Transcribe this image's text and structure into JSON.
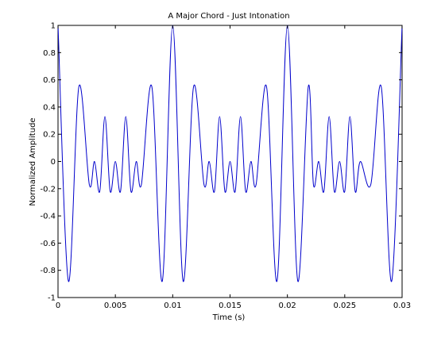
{
  "chart_data": {
    "type": "line",
    "title": "A Major Chord - Just Intonation",
    "xlabel": "Time (s)",
    "ylabel": "Normalized Amplitude",
    "xlim": [
      0,
      0.03
    ],
    "ylim": [
      -1,
      1
    ],
    "grid": false,
    "legend": "none",
    "line_color": "#0000cc",
    "frame_color": "#000000",
    "x_ticks": [
      {
        "value": 0,
        "label": "0"
      },
      {
        "value": 0.005,
        "label": "0.005"
      },
      {
        "value": 0.01,
        "label": "0.01"
      },
      {
        "value": 0.015,
        "label": "0.015"
      },
      {
        "value": 0.02,
        "label": "0.02"
      },
      {
        "value": 0.025,
        "label": "0.025"
      },
      {
        "value": 0.03,
        "label": "0.03"
      }
    ],
    "y_ticks": [
      {
        "value": 1,
        "label": "1"
      },
      {
        "value": 0.8,
        "label": "0.8"
      },
      {
        "value": 0.6,
        "label": "0.6"
      },
      {
        "value": 0.4,
        "label": "0.4"
      },
      {
        "value": 0.2,
        "label": "0.2"
      },
      {
        "value": 0,
        "label": "0"
      },
      {
        "value": -0.2,
        "label": "-0.2"
      },
      {
        "value": -0.4,
        "label": "-0.4"
      },
      {
        "value": -0.6,
        "label": "-0.6"
      },
      {
        "value": -0.8,
        "label": "-0.8"
      },
      {
        "value": -1,
        "label": "-1"
      }
    ],
    "series": [
      {
        "x": [
          0,
          0.00091,
          0.00182,
          0.00273,
          0.00318,
          0.00364,
          0.00409,
          0.00455,
          0.005,
          0.00545,
          0.00591,
          0.00636,
          0.00682,
          0.00727,
          0.00818,
          0.00909,
          0.01,
          0.01091,
          0.01182,
          0.01273,
          0.01318,
          0.01364,
          0.01409,
          0.01455,
          0.015,
          0.01545,
          0.01591,
          0.01636,
          0.01682,
          0.01727,
          0.01818,
          0.01909,
          0.02,
          0.02091,
          0.02182,
          0.02227,
          0.02273,
          0.02318,
          0.02364,
          0.02409,
          0.02455,
          0.025,
          0.02545,
          0.02591,
          0.02636,
          0.02727,
          0.02818,
          0.02909,
          0.03
        ],
        "y": [
          1,
          -0.88,
          0.55,
          -0.17,
          0,
          -0.22,
          0.33,
          -0.22,
          0,
          -0.22,
          0.33,
          -0.22,
          0,
          -0.17,
          0.55,
          -0.88,
          1,
          -0.88,
          0.55,
          -0.17,
          0,
          -0.22,
          0.33,
          -0.22,
          0,
          -0.22,
          0.33,
          -0.22,
          0,
          -0.17,
          0.55,
          -0.88,
          1,
          -0.88,
          0.55,
          -0.17,
          0,
          -0.22,
          0.33,
          -0.22,
          0,
          -0.22,
          0.33,
          -0.22,
          0,
          -0.17,
          0.55,
          -0.88,
          1
        ]
      }
    ]
  }
}
